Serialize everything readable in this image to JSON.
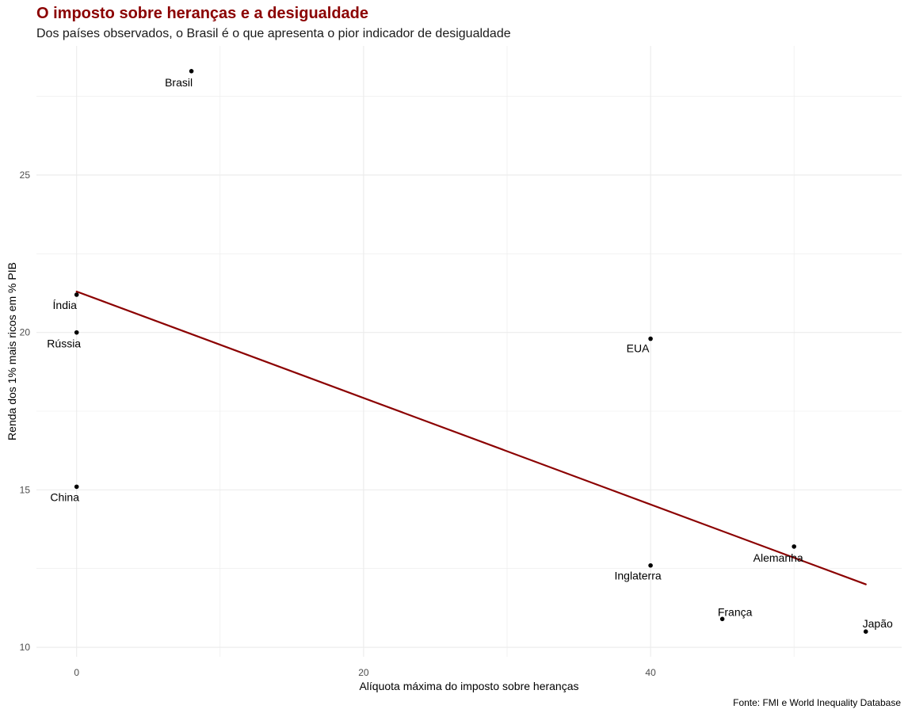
{
  "chart_data": {
    "type": "scatter",
    "title": "O imposto sobre heranças e a desigualdade",
    "subtitle": "Dos países observados, o Brasil é o que apresenta o pior indicador de desigualdade",
    "caption": "Fonte: FMI e World Inequality Database",
    "xlabel": "Alíquota máxima do imposto sobre heranças",
    "ylabel": "Renda dos 1% mais ricos em % PIB",
    "xlim": [
      -2.8,
      57.5
    ],
    "ylim": [
      9.7,
      29.1
    ],
    "x_ticks": [
      0,
      20,
      40
    ],
    "y_ticks": [
      10,
      15,
      20,
      25
    ],
    "grid": true,
    "legend": "none",
    "colors": {
      "points": "#000000",
      "trend_line": "#8b0000",
      "title": "#8b0000",
      "grid": "#ebebeb"
    },
    "points": [
      {
        "label": "Brasil",
        "x": 8,
        "y": 28.3
      },
      {
        "label": "Índia",
        "x": 0,
        "y": 21.2
      },
      {
        "label": "Rússia",
        "x": 0,
        "y": 20.0
      },
      {
        "label": "China",
        "x": 0,
        "y": 15.1
      },
      {
        "label": "EUA",
        "x": 40,
        "y": 19.8
      },
      {
        "label": "Alemanha",
        "x": 50,
        "y": 13.2
      },
      {
        "label": "Inglaterra",
        "x": 40,
        "y": 12.6
      },
      {
        "label": "França",
        "x": 45,
        "y": 10.9
      },
      {
        "label": "Japão",
        "x": 55,
        "y": 10.5
      }
    ],
    "trend_line": {
      "x": [
        0,
        55
      ],
      "y": [
        21.3,
        12.0
      ]
    }
  }
}
